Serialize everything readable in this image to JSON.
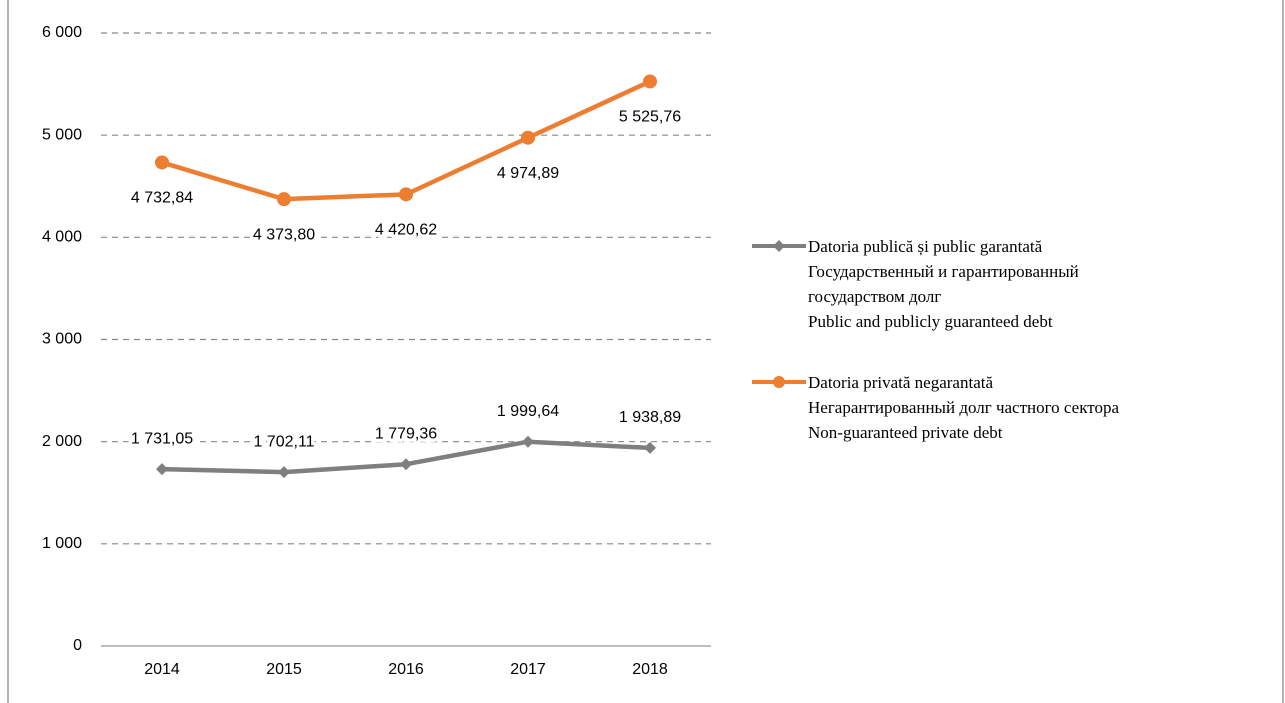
{
  "chart_data": {
    "type": "line",
    "categories": [
      "2014",
      "2015",
      "2016",
      "2017",
      "2018"
    ],
    "series": [
      {
        "name": "Datoria publică și public garantată\nГосударственный и гарантированный\nгосударством долг\nPublic and publicly guaranteed debt",
        "color": "#7f7f7f",
        "marker": "diamond",
        "values": [
          1731.05,
          1702.11,
          1779.36,
          1999.64,
          1938.89
        ],
        "value_labels": [
          "1 731,05",
          "1 702,11",
          "1 779,36",
          "1 999,64",
          "1 938,89"
        ]
      },
      {
        "name": "Datoria privată negarantată\nНегарантированный долг частного сектора\nNon-guaranteed private debt",
        "color": "#ed7d31",
        "marker": "circle",
        "values": [
          4732.84,
          4373.8,
          4420.62,
          4974.89,
          5525.76
        ],
        "value_labels": [
          "4 732,84",
          "4 373,80",
          "4 420,62",
          "4 974,89",
          "5 525,76"
        ]
      }
    ],
    "ylim": [
      0,
      6000
    ],
    "yticks": [
      0,
      {
        "value": 1000,
        "label": "1 000"
      },
      {
        "value": 2000,
        "label": "2 000"
      },
      {
        "value": 3000,
        "label": "3 000"
      },
      {
        "value": 4000,
        "label": "4 000"
      },
      {
        "value": 5000,
        "label": "5 000"
      },
      {
        "value": 6000,
        "label": "6 000"
      }
    ],
    "grid": true,
    "legend": "right"
  }
}
